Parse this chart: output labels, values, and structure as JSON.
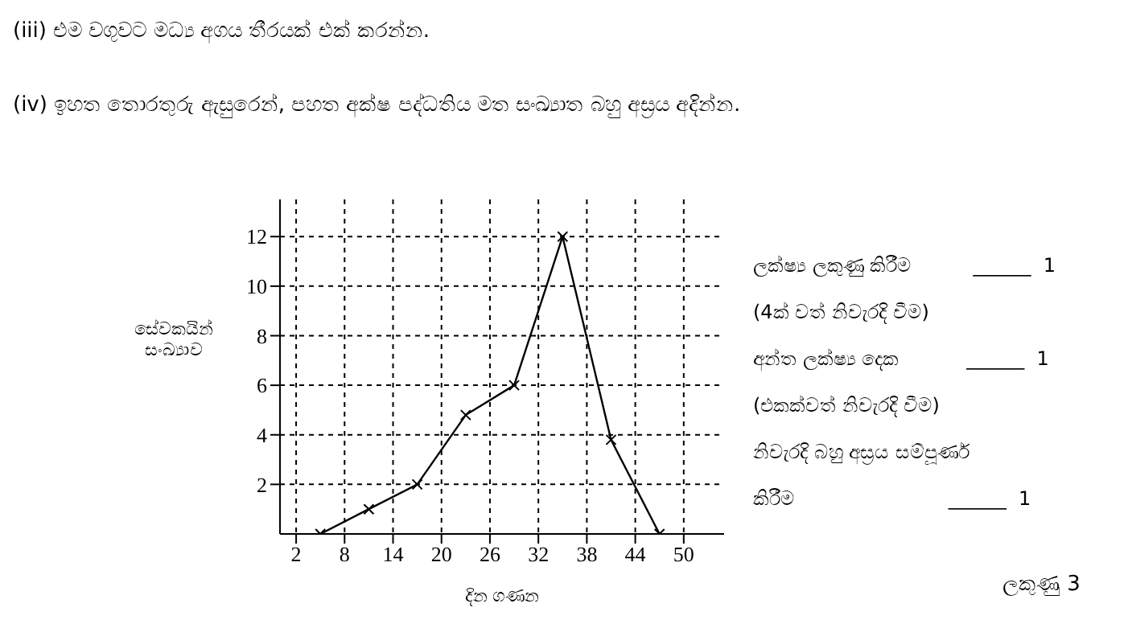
{
  "chart_data": {
    "type": "line",
    "xlabel": "දින ගණන",
    "ylabel": "සේවකයින් සංඛ්‍යාව",
    "x": [
      5,
      11,
      17,
      23,
      29,
      35,
      41,
      47
    ],
    "series": [
      {
        "color": "#000000",
        "values": [
          0,
          1,
          2,
          4.8,
          6,
          12,
          3.8,
          0
        ]
      }
    ],
    "xlim": [
      0,
      55
    ],
    "xticks": [
      2,
      8,
      14,
      20,
      26,
      32,
      38,
      44,
      50
    ],
    "ylim": [
      0,
      13.5
    ],
    "yticks": [
      2,
      4,
      6,
      8,
      10,
      12
    ],
    "grid": true,
    "marker": "cross",
    "line_style": "solid",
    "annotations": [
      "(iii)  එම වගුවට මධ්‍ය අගය තීරයක් එක් කරන්න.",
      "(iv)  ඉහත තොරතුරු ඇසුරෙන්, පහත අක්ෂ පද්ධතිය මත සංඛ්‍යාත බහු අස්‍රය අදින්න.",
      "ලක්ෂ්‍ය ලකුණු කිරීම          ______  1",
      "(4ක් වත් නිවැරදි වීම)",
      "අන්ත ලක්ෂ්‍ය දෙක           ______  1",
      "(එකක්වත් නිවැරදි වීම)",
      "නිවැරදි බහු අස්‍රය සම්පූර්ණ",
      "කිරීම                         ______  1",
      "ලකුණු 3"
    ]
  }
}
